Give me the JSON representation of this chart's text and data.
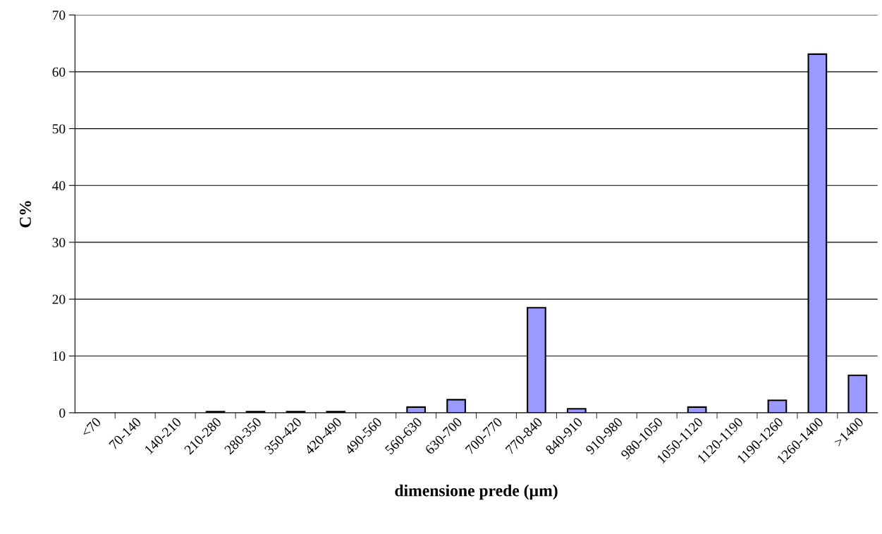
{
  "chart_data": {
    "type": "bar",
    "xlabel": "dimensione prede (µm)",
    "ylabel": "C%",
    "categories": [
      "<70",
      "70-140",
      "140-210",
      "210-280",
      "280-350",
      "350-420",
      "420-490",
      "490-560",
      "560-630",
      "630-700",
      "700-770",
      "770-840",
      "840-910",
      "910-980",
      "980-1050",
      "1050-1120",
      "1120-1190",
      "1190-1260",
      "1260-1400",
      ">1400"
    ],
    "values": [
      0,
      0,
      0,
      0.2,
      0.2,
      0.2,
      0.2,
      0,
      1.0,
      2.3,
      0,
      18.5,
      0.7,
      0,
      0,
      1.0,
      0,
      2.2,
      63.1,
      6.6
    ],
    "color": "#9999ff",
    "ylim": [
      0,
      70
    ],
    "yticks": [
      0,
      10,
      20,
      30,
      40,
      50,
      60,
      70
    ],
    "grid": "y"
  }
}
